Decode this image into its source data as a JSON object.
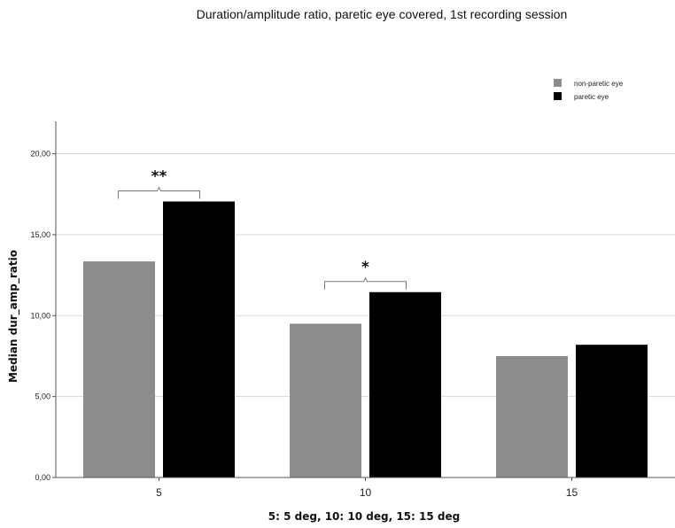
{
  "chart_data": {
    "type": "bar",
    "title": "Duration/amplitude  ratio, paretic eye covered, 1st recording session",
    "xlabel": "5: 5 deg, 10: 10 deg, 15: 15 deg",
    "ylabel": "Median dur_amp_ratio",
    "categories": [
      "5",
      "10",
      "15"
    ],
    "series": [
      {
        "name": "non-paretic eye",
        "color": "#8c8c8c",
        "values": [
          13.35,
          9.5,
          7.5
        ]
      },
      {
        "name": "paretic eye",
        "color": "#000000",
        "values": [
          17.05,
          11.45,
          8.2
        ]
      }
    ],
    "ylim": [
      0,
      22
    ],
    "yticks": [
      0,
      5,
      10,
      15,
      20
    ],
    "ytick_labels": [
      "0,00",
      "5,00",
      "10,00",
      "15,00",
      "20,00"
    ],
    "grid": true,
    "legend_position": "top-right",
    "annotations": [
      {
        "category": "5",
        "text": "**"
      },
      {
        "category": "10",
        "text": "*"
      }
    ]
  }
}
